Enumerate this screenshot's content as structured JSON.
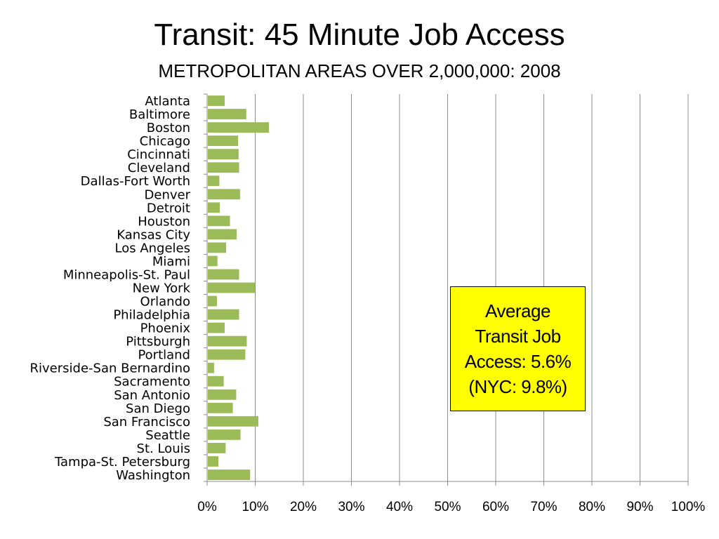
{
  "chart_data": {
    "type": "bar",
    "orientation": "horizontal",
    "title": "Transit: 45 Minute Job Access",
    "subtitle": "METROPOLITAN AREAS OVER 2,000,000: 2008",
    "categories": [
      "Atlanta",
      "Baltimore",
      "Boston",
      "Chicago",
      "Cincinnati",
      "Cleveland",
      "Dallas-Fort Worth",
      "Denver",
      "Detroit",
      "Houston",
      "Kansas City",
      "Los Angeles",
      "Miami",
      "Minneapolis-St. Paul",
      "New York",
      "Orlando",
      "Philadelphia",
      "Phoenix",
      "Pittsburgh",
      "Portland",
      "Riverside-San Bernardino",
      "Sacramento",
      "San Antonio",
      "San Diego",
      "San Francisco",
      "Seattle",
      "St. Louis",
      "Tampa-St. Petersburg",
      "Washington"
    ],
    "values": [
      3.5,
      8.0,
      12.7,
      6.3,
      6.4,
      6.5,
      2.4,
      6.7,
      2.5,
      4.6,
      6.0,
      3.8,
      2.0,
      6.5,
      9.8,
      1.9,
      6.5,
      3.5,
      8.1,
      7.8,
      1.3,
      3.3,
      5.9,
      5.2,
      10.5,
      6.8,
      3.7,
      2.2,
      8.8
    ],
    "xlim": [
      0,
      100
    ],
    "xticks": [
      "0%",
      "10%",
      "20%",
      "30%",
      "40%",
      "50%",
      "60%",
      "70%",
      "80%",
      "90%",
      "100%"
    ],
    "grid": true,
    "bar_color": "#9bbb59"
  },
  "callout": {
    "text": "Average\nTransit Job\nAccess: 5.6%\n(NYC: 9.8%)",
    "background": "#ffff00"
  }
}
